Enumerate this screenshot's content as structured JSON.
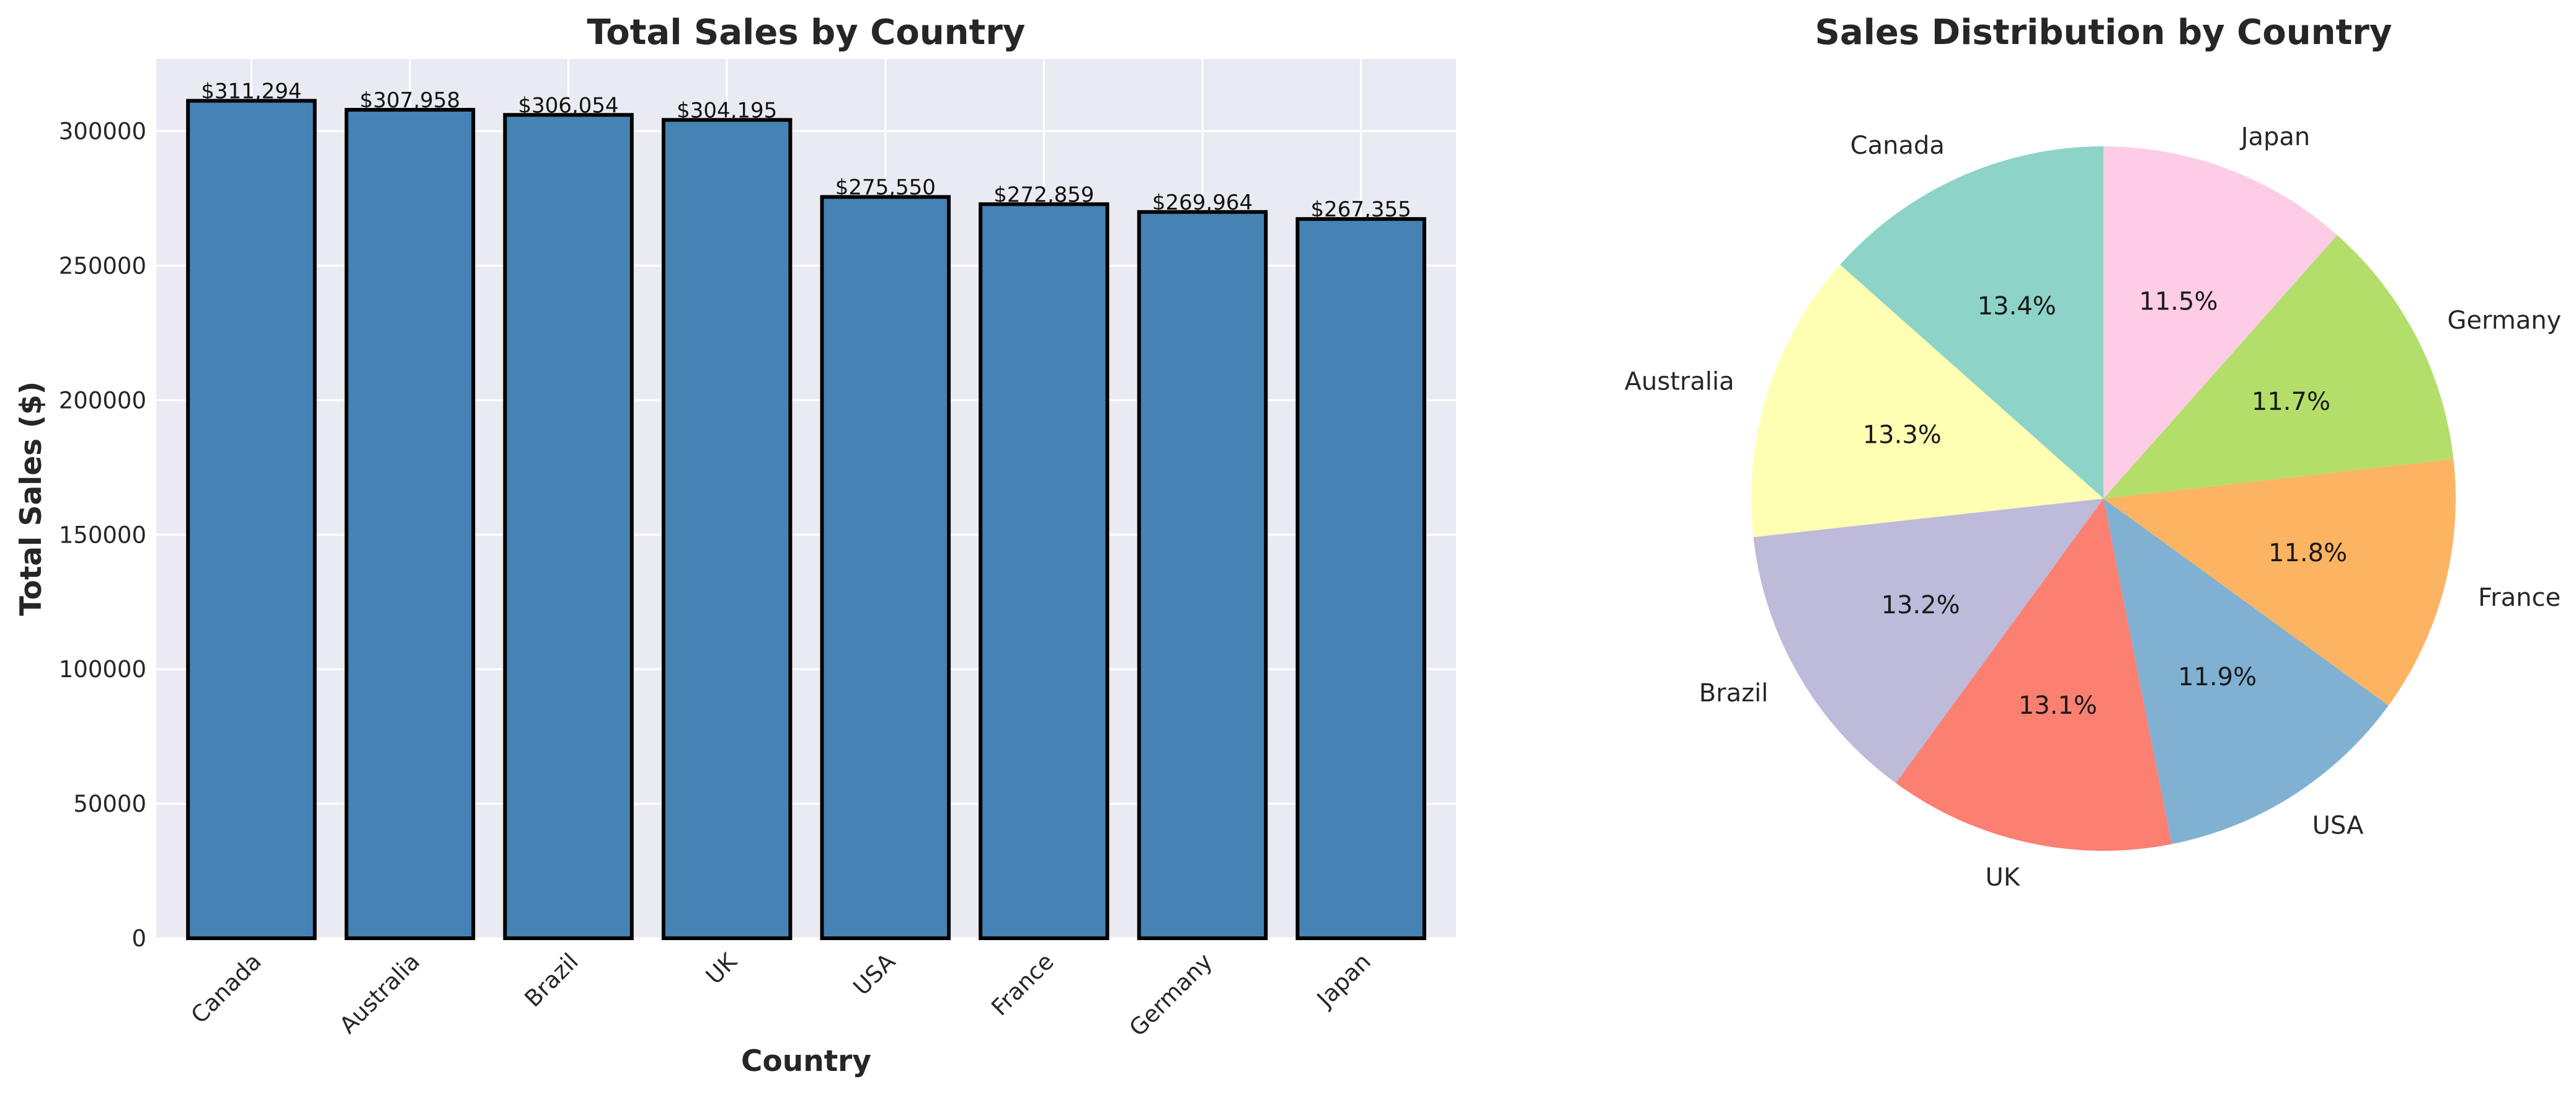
{
  "chart_data": [
    {
      "type": "bar",
      "title": "Total Sales by Country",
      "xlabel": "Country",
      "ylabel": "Total Sales ($)",
      "categories": [
        "Canada",
        "Australia",
        "Brazil",
        "UK",
        "USA",
        "France",
        "Germany",
        "Japan"
      ],
      "values": [
        311294,
        307958,
        306054,
        304195,
        275550,
        272859,
        269964,
        267355
      ],
      "data_labels": [
        "$311,294",
        "$307,958",
        "$306,054",
        "$304,195",
        "$275,550",
        "$272,859",
        "$269,964",
        "$267,355"
      ],
      "yticks": [
        0,
        50000,
        100000,
        150000,
        200000,
        250000,
        300000
      ],
      "ytick_labels": [
        "0",
        "50000",
        "100000",
        "150000",
        "200000",
        "250000",
        "300000"
      ],
      "ylim": [
        0,
        326859
      ],
      "grid": true,
      "bar_color": "#4682b4",
      "edge_color": "#000000",
      "plot_background": "#eaeaf2"
    },
    {
      "type": "pie",
      "title": "Sales Distribution by Country",
      "labels": [
        "Canada",
        "Australia",
        "Brazil",
        "UK",
        "USA",
        "France",
        "Germany",
        "Japan"
      ],
      "percent_labels": [
        "13.4%",
        "13.3%",
        "13.2%",
        "13.1%",
        "11.9%",
        "11.8%",
        "11.7%",
        "11.5%"
      ],
      "values": [
        311294,
        307958,
        306054,
        304195,
        275550,
        272859,
        269964,
        267355
      ],
      "colors": [
        "#8dd3c7",
        "#ffffb3",
        "#bebada",
        "#fb8072",
        "#80b1d3",
        "#fdb462",
        "#b3de69",
        "#fccde5"
      ],
      "start_angle": 90,
      "direction": "counterclockwise"
    }
  ]
}
